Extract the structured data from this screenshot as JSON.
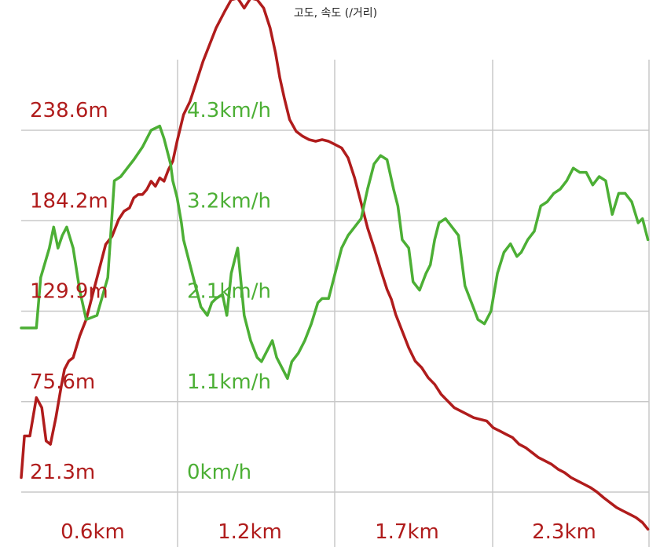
{
  "chart_data": {
    "type": "line",
    "title": "고도, 속도 (/거리)",
    "x_axis": {
      "tick_labels": [
        "0.6km",
        "1.2km",
        "1.7km",
        "2.3km"
      ],
      "tick_values_km": [
        0.6,
        1.2,
        1.7,
        2.3
      ],
      "range_km": [
        0.0,
        2.9
      ]
    },
    "y_left": {
      "label_color": "#b01c1c",
      "tick_labels": [
        "21.3m",
        "75.6m",
        "129.9m",
        "184.2m",
        "238.6m"
      ],
      "range_m": [
        21.3,
        238.6
      ]
    },
    "y_right": {
      "label_color": "#4caf35",
      "tick_labels": [
        "0km/h",
        "1.1km/h",
        "2.1km/h",
        "3.2km/h",
        "4.3km/h"
      ],
      "range_kmh": [
        0.0,
        4.3
      ]
    },
    "grid": true,
    "series": [
      {
        "id": "elevation",
        "color": "#b01c1c",
        "axis": "left",
        "x": [
          0.0,
          0.015,
          0.04,
          0.07,
          0.095,
          0.115,
          0.135,
          0.16,
          0.185,
          0.2,
          0.22,
          0.24,
          0.27,
          0.3,
          0.33,
          0.36,
          0.39,
          0.42,
          0.45,
          0.475,
          0.5,
          0.52,
          0.54,
          0.56,
          0.58,
          0.6,
          0.62,
          0.64,
          0.66,
          0.68,
          0.7,
          0.72,
          0.75,
          0.78,
          0.81,
          0.84,
          0.87,
          0.9,
          0.94,
          0.97,
          1.0,
          1.03,
          1.06,
          1.09,
          1.12,
          1.15,
          1.175,
          1.195,
          1.215,
          1.24,
          1.27,
          1.3,
          1.33,
          1.36,
          1.39,
          1.42,
          1.45,
          1.48,
          1.51,
          1.54,
          1.57,
          1.6,
          1.63,
          1.66,
          1.69,
          1.71,
          1.73,
          1.76,
          1.79,
          1.82,
          1.85,
          1.88,
          1.91,
          1.94,
          1.97,
          2.0,
          2.03,
          2.06,
          2.09,
          2.12,
          2.15,
          2.18,
          2.21,
          2.24,
          2.27,
          2.3,
          2.33,
          2.36,
          2.39,
          2.42,
          2.45,
          2.48,
          2.51,
          2.54,
          2.57,
          2.6,
          2.63,
          2.66,
          2.69,
          2.72,
          2.75,
          2.78,
          2.81,
          2.84,
          2.87,
          2.895
        ],
        "y": [
          30,
          55,
          55,
          78,
          72,
          52,
          50,
          66,
          85,
          95,
          100,
          102,
          115,
          125,
          140,
          155,
          170,
          175,
          185,
          190,
          192,
          198,
          200,
          200,
          203,
          208,
          205,
          210,
          208,
          215,
          220,
          232,
          248,
          256,
          268,
          280,
          290,
          300,
          310,
          317,
          318,
          312,
          318,
          317,
          312,
          300,
          285,
          270,
          258,
          245,
          238,
          235,
          233,
          232,
          233,
          232,
          230,
          228,
          222,
          210,
          195,
          180,
          168,
          155,
          143,
          137,
          128,
          118,
          108,
          100,
          96,
          90,
          86,
          80,
          76,
          72,
          70,
          68,
          66,
          65,
          64,
          60,
          58,
          56,
          54,
          50,
          48,
          45,
          42,
          40,
          38,
          35,
          33,
          30,
          28,
          26,
          24,
          21.3,
          18,
          15,
          12,
          10,
          8,
          6,
          3,
          -1
        ],
        "y_unit": "m"
      },
      {
        "id": "speed",
        "color": "#4caf35",
        "axis": "right",
        "x": [
          0.0,
          0.07,
          0.09,
          0.13,
          0.15,
          0.17,
          0.19,
          0.21,
          0.24,
          0.27,
          0.3,
          0.35,
          0.4,
          0.43,
          0.46,
          0.49,
          0.52,
          0.56,
          0.6,
          0.64,
          0.66,
          0.69,
          0.7,
          0.72,
          0.74,
          0.75,
          0.77,
          0.8,
          0.83,
          0.86,
          0.88,
          0.9,
          0.93,
          0.95,
          0.97,
          1.0,
          1.03,
          1.06,
          1.09,
          1.11,
          1.14,
          1.16,
          1.18,
          1.2,
          1.23,
          1.25,
          1.28,
          1.31,
          1.34,
          1.37,
          1.39,
          1.42,
          1.45,
          1.48,
          1.51,
          1.54,
          1.57,
          1.6,
          1.63,
          1.66,
          1.69,
          1.72,
          1.74,
          1.76,
          1.79,
          1.81,
          1.84,
          1.87,
          1.89,
          1.91,
          1.93,
          1.96,
          1.99,
          2.02,
          2.05,
          2.08,
          2.11,
          2.14,
          2.17,
          2.2,
          2.23,
          2.26,
          2.29,
          2.31,
          2.34,
          2.37,
          2.4,
          2.43,
          2.46,
          2.49,
          2.52,
          2.55,
          2.58,
          2.61,
          2.64,
          2.67,
          2.7,
          2.73,
          2.76,
          2.79,
          2.82,
          2.85,
          2.87,
          2.895
        ],
        "y": [
          1.95,
          1.95,
          2.55,
          2.9,
          3.15,
          2.9,
          3.05,
          3.15,
          2.9,
          2.4,
          2.05,
          2.1,
          2.55,
          3.7,
          3.75,
          3.85,
          3.95,
          4.1,
          4.3,
          4.35,
          4.2,
          3.9,
          3.7,
          3.5,
          3.2,
          3.0,
          2.8,
          2.5,
          2.2,
          2.1,
          2.25,
          2.3,
          2.35,
          2.1,
          2.6,
          2.9,
          2.1,
          1.8,
          1.6,
          1.55,
          1.7,
          1.8,
          1.6,
          1.5,
          1.35,
          1.55,
          1.65,
          1.8,
          2.0,
          2.25,
          2.3,
          2.3,
          2.6,
          2.9,
          3.05,
          3.15,
          3.25,
          3.6,
          3.9,
          4.0,
          3.95,
          3.6,
          3.4,
          3.0,
          2.9,
          2.5,
          2.4,
          2.6,
          2.7,
          3.0,
          3.2,
          3.25,
          3.15,
          3.05,
          2.45,
          2.25,
          2.05,
          2.0,
          2.15,
          2.6,
          2.85,
          2.95,
          2.8,
          2.85,
          3.0,
          3.1,
          3.4,
          3.45,
          3.55,
          3.6,
          3.7,
          3.85,
          3.8,
          3.8,
          3.65,
          3.75,
          3.7,
          3.3,
          3.55,
          3.55,
          3.45,
          3.2,
          3.25,
          3.0
        ],
        "y_unit": "km/h"
      }
    ]
  }
}
